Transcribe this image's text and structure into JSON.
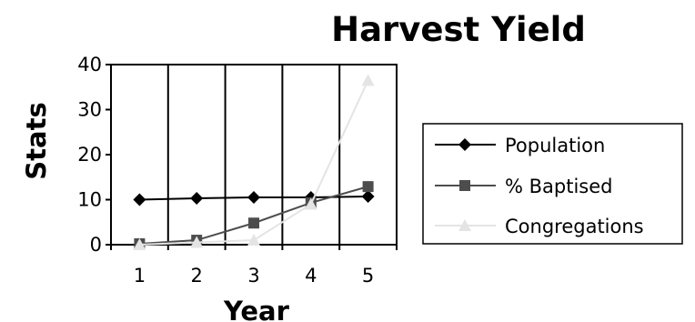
{
  "chart_data": {
    "type": "line",
    "title": "Harvest Yield",
    "xlabel": "Year",
    "ylabel": "Stats",
    "categories": [
      "1",
      "2",
      "3",
      "4",
      "5"
    ],
    "yticks": [
      "0",
      "10",
      "20",
      "30",
      "40"
    ],
    "ylim": [
      0,
      40
    ],
    "grid": "vertical",
    "legend_position": "right",
    "series": [
      {
        "name": "Population",
        "values": [
          10,
          10.3,
          10.5,
          10.5,
          10.7
        ],
        "color": "#000000",
        "marker": "diamond"
      },
      {
        "name": "% Baptised",
        "values": [
          0.2,
          1,
          4.8,
          9.3,
          12.9
        ],
        "color": "#4d4d4d",
        "marker": "square"
      },
      {
        "name": "Congregations",
        "values": [
          0,
          0.5,
          1,
          9,
          36.5
        ],
        "color": "#e4e4e4",
        "marker": "triangle"
      }
    ]
  }
}
